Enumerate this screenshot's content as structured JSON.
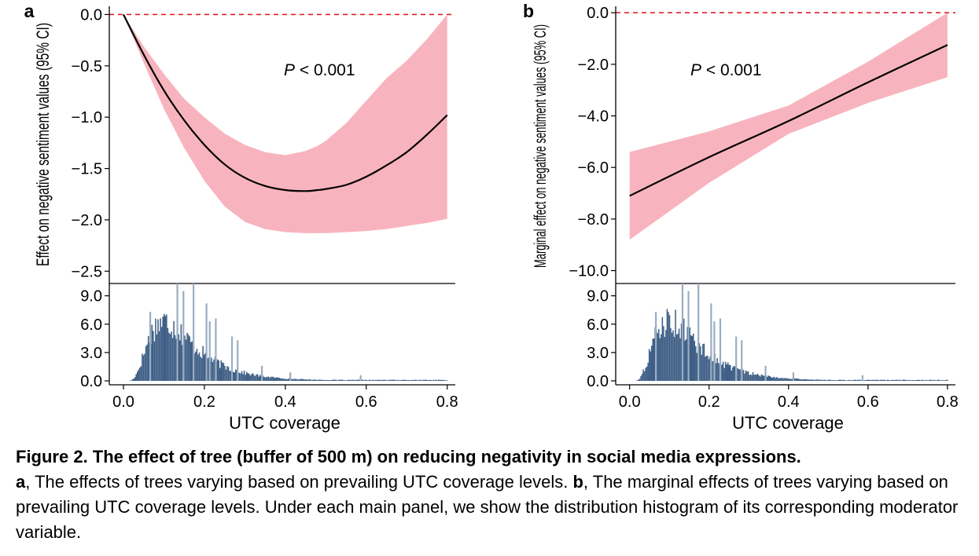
{
  "colors": {
    "ci_band": "#f8b4be",
    "effect_line": "#000000",
    "reference_line": "#e0202a",
    "histogram_bar": "#3e5e86",
    "histogram_spike": "#9aaec2"
  },
  "chart_data": [
    {
      "type": "line",
      "panel_label": "a",
      "ylabel": "Effect on negative sentiment values (95% CI)",
      "xlabel": "UTC coverage",
      "annotation_italic": "P",
      "annotation_rest": " < 0.001",
      "xlim": [
        -0.035,
        0.82
      ],
      "ylim": [
        -2.62,
        0.08
      ],
      "xticks": [
        "0.0",
        "0.2",
        "0.4",
        "0.6",
        "0.8"
      ],
      "xtick_values": [
        0.0,
        0.2,
        0.4,
        0.6,
        0.8
      ],
      "yticks": [
        "0.0",
        "−0.5",
        "−1.0",
        "−1.5",
        "−2.0",
        "−2.5"
      ],
      "ytick_values": [
        0.0,
        -0.5,
        -1.0,
        -1.5,
        -2.0,
        -2.5
      ],
      "reference_y": 0.0,
      "x": [
        0.0,
        0.05,
        0.1,
        0.15,
        0.2,
        0.25,
        0.3,
        0.35,
        0.4,
        0.45,
        0.48,
        0.5,
        0.55,
        0.6,
        0.65,
        0.7,
        0.75,
        0.8
      ],
      "effect": [
        0.0,
        -0.39,
        -0.74,
        -1.03,
        -1.27,
        -1.46,
        -1.59,
        -1.67,
        -1.71,
        -1.72,
        -1.71,
        -1.7,
        -1.66,
        -1.58,
        -1.47,
        -1.34,
        -1.17,
        -0.98
      ],
      "ci_lower": [
        0.0,
        -0.47,
        -0.92,
        -1.3,
        -1.62,
        -1.87,
        -2.02,
        -2.09,
        -2.12,
        -2.13,
        -2.13,
        -2.13,
        -2.12,
        -2.11,
        -2.09,
        -2.06,
        -2.03,
        -1.99
      ],
      "ci_upper": [
        0.0,
        -0.31,
        -0.58,
        -0.82,
        -1.0,
        -1.16,
        -1.27,
        -1.34,
        -1.37,
        -1.33,
        -1.28,
        -1.23,
        -1.06,
        -0.84,
        -0.62,
        -0.45,
        -0.24,
        0.0
      ]
    },
    {
      "type": "line",
      "panel_label": "b",
      "ylabel": "Marginal effect on negative sentiment values (95% CI)",
      "xlabel": "UTC coverage",
      "annotation_italic": "P",
      "annotation_rest": " < 0.001",
      "xlim": [
        -0.035,
        0.82
      ],
      "ylim": [
        -10.5,
        0.25
      ],
      "xticks": [
        "0.0",
        "0.2",
        "0.4",
        "0.6",
        "0.8"
      ],
      "xtick_values": [
        0.0,
        0.2,
        0.4,
        0.6,
        0.8
      ],
      "yticks": [
        "0.0",
        "−2.0",
        "−4.0",
        "−6.0",
        "−8.0",
        "−10.0"
      ],
      "ytick_values": [
        0.0,
        -2.0,
        -4.0,
        -6.0,
        -8.0,
        -10.0
      ],
      "reference_y": 0.0,
      "x": [
        0.0,
        0.2,
        0.4,
        0.6,
        0.8
      ],
      "effect": [
        -7.1,
        -5.6,
        -4.2,
        -2.7,
        -1.25
      ],
      "ci_lower": [
        -8.8,
        -6.6,
        -4.7,
        -3.5,
        -2.5
      ],
      "ci_upper": [
        -5.4,
        -4.6,
        -3.6,
        -1.9,
        0.0
      ]
    }
  ],
  "histogram": {
    "yticks": [
      "0.0",
      "3.0",
      "6.0",
      "9.0"
    ],
    "ytick_values": [
      0.0,
      3.0,
      6.0,
      9.0
    ],
    "ylim": [
      0,
      10.3
    ],
    "bin_width": 0.003,
    "spikes": [
      {
        "x": 0.066,
        "value": 7.3
      },
      {
        "x": 0.133,
        "value": 10.3
      },
      {
        "x": 0.148,
        "value": 9.5
      },
      {
        "x": 0.173,
        "value": 10.3
      },
      {
        "x": 0.205,
        "value": 8.2
      },
      {
        "x": 0.213,
        "value": 6.3
      },
      {
        "x": 0.228,
        "value": 6.6
      },
      {
        "x": 0.268,
        "value": 4.7
      },
      {
        "x": 0.282,
        "value": 4.3
      },
      {
        "x": 0.342,
        "value": 1.6
      },
      {
        "x": 0.412,
        "value": 0.9
      },
      {
        "x": 0.586,
        "value": 0.6
      }
    ]
  },
  "caption": {
    "title": "Figure 2.  The effect of tree (buffer of 500 m) on reducing negativity in social media expressions.",
    "label_a": "a",
    "text_a": ", The effects of trees varying based on prevailing UTC coverage levels. ",
    "label_b": "b",
    "text_b": ", The marginal effects of trees varying based on prevailing UTC coverage levels. Under each main panel, we show the distribution histogram of its corresponding moderator variable."
  }
}
